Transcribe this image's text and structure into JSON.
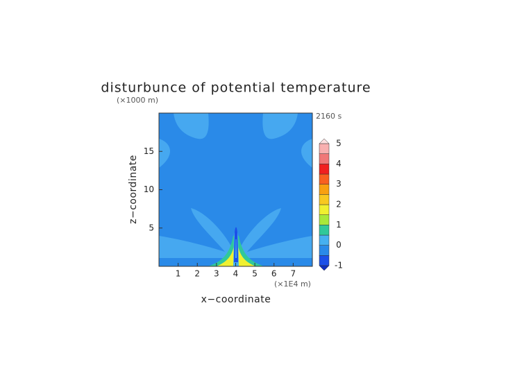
{
  "chart_data": {
    "type": "contour",
    "title": "disturbunce of potential temperature",
    "y_unit": "(×1000 m)",
    "time_label": "2160 s",
    "x_label": "x−coordinate",
    "y_label": "z−coordinate",
    "x_unit": "(×1E4 m)",
    "xlim": [
      0,
      8
    ],
    "ylim": [
      0,
      20
    ],
    "xticks": [
      1,
      2,
      3,
      4,
      5,
      6,
      7
    ],
    "yticks": [
      5,
      10,
      15
    ],
    "colorbar": {
      "levels": [
        -1,
        -0.5,
        0,
        0.5,
        1,
        1.5,
        2,
        2.5,
        3,
        3.5,
        4,
        4.5,
        5
      ],
      "colors": [
        "#1c50e8",
        "#2a8ae8",
        "#46b0f0",
        "#30c89a",
        "#a8e83a",
        "#f0f030",
        "#f8c820",
        "#f8a010",
        "#f86020",
        "#f02020",
        "#f07878",
        "#f8b0b0"
      ],
      "ticks": [
        -1,
        0,
        1,
        2,
        3,
        4,
        5
      ]
    }
  }
}
